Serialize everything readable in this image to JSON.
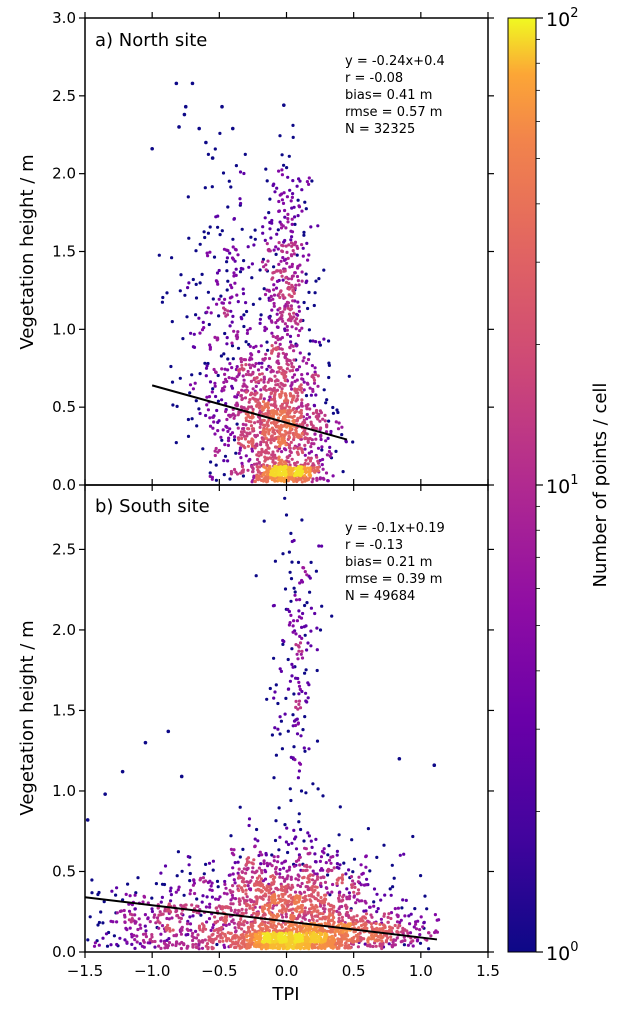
{
  "chart_data": [
    {
      "type": "scatter",
      "panel_label": "a) North site",
      "xlabel": "",
      "ylabel": "Vegetation height / m",
      "xlim": [
        -1.5,
        1.5
      ],
      "ylim": [
        0.0,
        3.0
      ],
      "y_ticks": [
        "0.0",
        "0.5",
        "1.0",
        "1.5",
        "2.0",
        "2.5",
        "3.0"
      ],
      "x_ticks": [],
      "stats": [
        "y = -0.24x+0.4",
        "r = -0.08",
        "bias= 0.41 m",
        "rmse = 0.57 m",
        "N = 32325"
      ],
      "fit": {
        "slope": -0.24,
        "intercept": 0.4,
        "x_range": [
          -1.0,
          0.45
        ]
      },
      "outliers": [
        {
          "x": -0.82,
          "y": 2.58
        },
        {
          "x": -0.7,
          "y": 2.58
        },
        {
          "x": -0.75,
          "y": 2.43
        },
        {
          "x": -0.76,
          "y": 2.38
        },
        {
          "x": -0.48,
          "y": 2.43
        },
        {
          "x": -0.02,
          "y": 2.44
        },
        {
          "x": -0.8,
          "y": 2.3
        },
        {
          "x": -0.65,
          "y": 2.29
        },
        {
          "x": -0.4,
          "y": 2.29
        },
        {
          "x": -1.0,
          "y": 2.16
        },
        {
          "x": -0.6,
          "y": 2.2
        },
        {
          "x": -0.55,
          "y": 2.1
        }
      ],
      "density_clusters": [
        {
          "x_center": 0.0,
          "y_center": 1.25,
          "x_spread": 0.09,
          "y_spread": 0.42,
          "share": 0.2
        },
        {
          "x_center": 0.0,
          "y_center": 0.4,
          "x_spread": 0.18,
          "y_spread": 0.22,
          "share": 0.35
        },
        {
          "x_center": -0.3,
          "y_center": 0.45,
          "x_spread": 0.2,
          "y_spread": 0.25,
          "share": 0.2
        },
        {
          "x_center": 0.0,
          "y_center": 0.08,
          "x_spread": 0.12,
          "y_spread": 0.04,
          "share": 0.15
        },
        {
          "x_center": -0.45,
          "y_center": 1.3,
          "x_spread": 0.18,
          "y_spread": 0.35,
          "share": 0.1
        }
      ]
    },
    {
      "type": "scatter",
      "panel_label": "b) South site",
      "xlabel": "TPI",
      "ylabel": "Vegetation height / m",
      "xlim": [
        -1.5,
        1.5
      ],
      "ylim": [
        0.0,
        2.9
      ],
      "y_ticks": [
        "0.0",
        "0.5",
        "1.0",
        "1.5",
        "2.0",
        "2.5"
      ],
      "x_ticks": [
        "−1.5",
        "−1.0",
        "−0.5",
        "0.0",
        "0.5",
        "1.0",
        "1.5"
      ],
      "stats": [
        "y = -0.1x+0.19",
        "r = -0.13",
        "bias= 0.21 m",
        "rmse = 0.39 m",
        "N = 49684"
      ],
      "fit": {
        "slope": -0.1,
        "intercept": 0.19,
        "x_range": [
          -1.5,
          1.12
        ]
      },
      "outliers": [
        {
          "x": -0.88,
          "y": 1.37
        },
        {
          "x": -1.05,
          "y": 1.3
        },
        {
          "x": -1.22,
          "y": 1.12
        },
        {
          "x": -0.78,
          "y": 1.09
        },
        {
          "x": 0.84,
          "y": 1.2
        },
        {
          "x": 1.1,
          "y": 1.16
        },
        {
          "x": -1.48,
          "y": 0.82
        },
        {
          "x": -1.35,
          "y": 0.98
        }
      ],
      "density_clusters": [
        {
          "x_center": 0.0,
          "y_center": 0.3,
          "x_spread": 0.35,
          "y_spread": 0.18,
          "share": 0.45
        },
        {
          "x_center": 0.0,
          "y_center": 0.07,
          "x_spread": 0.2,
          "y_spread": 0.04,
          "share": 0.2
        },
        {
          "x_center": 0.08,
          "y_center": 1.8,
          "x_spread": 0.09,
          "y_spread": 0.45,
          "share": 0.07
        },
        {
          "x_center": 0.55,
          "y_center": 0.12,
          "x_spread": 0.28,
          "y_spread": 0.06,
          "share": 0.15
        },
        {
          "x_center": -0.9,
          "y_center": 0.18,
          "x_spread": 0.32,
          "y_spread": 0.12,
          "share": 0.13
        }
      ]
    }
  ],
  "colorbar": {
    "label": "Number of points / cell",
    "scale": "log",
    "range": [
      1,
      100
    ],
    "colormap": "plasma",
    "tick_labels": [
      {
        "base": "10",
        "exp": "2",
        "value": 100
      },
      {
        "base": "10",
        "exp": "1",
        "value": 10
      },
      {
        "base": "10",
        "exp": "0",
        "value": 1
      }
    ]
  }
}
